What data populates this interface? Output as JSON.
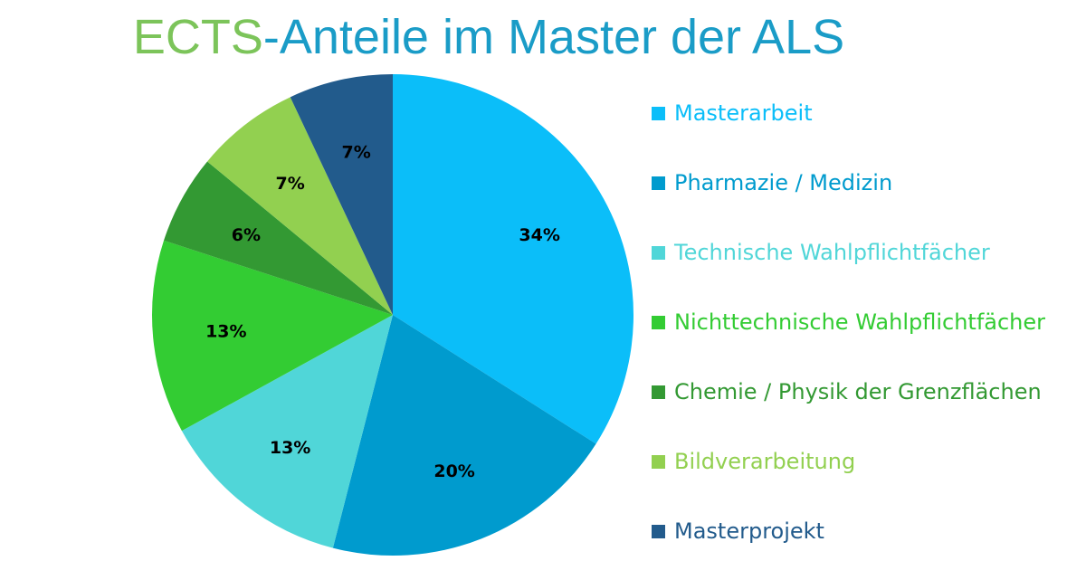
{
  "chart_data": {
    "type": "pie",
    "title": "ECTS-Anteile im Master der ALS",
    "title_colors": [
      "#7cc45a",
      "#1a9cc7"
    ],
    "start_angle_deg": 0,
    "direction": "clockwise",
    "series": [
      {
        "values": [
          34,
          20,
          13,
          13,
          6,
          7,
          7
        ],
        "labels": [
          "34%",
          "20%",
          "13%",
          "13%",
          "6%",
          "7%",
          "7%"
        ]
      }
    ],
    "categories": [
      "Masterarbeit",
      "Pharmazie / Medizin",
      "Technische Wahlpflichtfächer",
      "Nichttechnische Wahlpflichtfächer",
      "Chemie / Physik der Grenzflächen",
      "Bildverarbeitung",
      "Masterprojekt"
    ],
    "colors": [
      "#0bbef9",
      "#009bce",
      "#50d6d8",
      "#33cc33",
      "#339933",
      "#92d050",
      "#225b8c"
    ],
    "legend": {
      "position": "right",
      "text_colors": [
        "#0bbef9",
        "#009bce",
        "#50d6d8",
        "#33cc33",
        "#339933",
        "#92d050",
        "#225b8c"
      ]
    }
  }
}
